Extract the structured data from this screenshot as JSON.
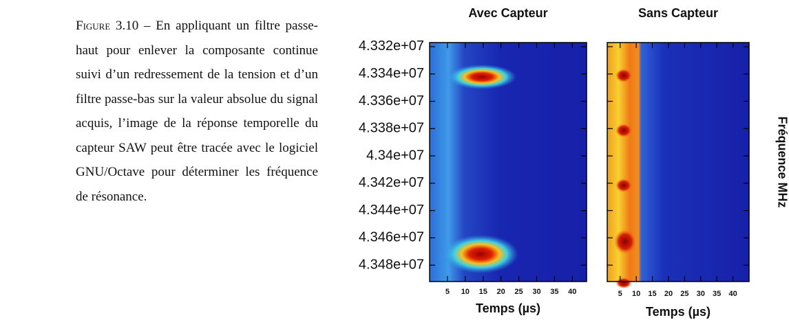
{
  "caption": {
    "label": "Figure 3.10",
    "separator": "–",
    "text": "En appliquant un filtre passe-haut pour enlever la composante continue suivi d’un redressement de la tension et d’un filtre passe-bas sur la valeur absolue du signal acquis, l’image de la réponse temporelle du capteur SAW peut être tracée avec le logiciel GNU/Octave pour déterminer les fréquence de résonance."
  },
  "figure": {
    "ylabel": "Fréquence MHz",
    "ylim": [
      43317000,
      43492000
    ],
    "yticks": [
      {
        "value": 43320000,
        "label": "4.332e+07"
      },
      {
        "value": 43340000,
        "label": "4.334e+07"
      },
      {
        "value": 43360000,
        "label": "4.336e+07"
      },
      {
        "value": 43380000,
        "label": "4.338e+07"
      },
      {
        "value": 43400000,
        "label": "4.34e+07"
      },
      {
        "value": 43420000,
        "label": "4.342e+07"
      },
      {
        "value": 43440000,
        "label": "4.344e+07"
      },
      {
        "value": 43460000,
        "label": "4.346e+07"
      },
      {
        "value": 43480000,
        "label": "4.348e+07"
      }
    ],
    "panels": [
      {
        "title": "Avec Capteur",
        "xlabel": "Temps (µs)",
        "xlim": [
          0,
          44
        ],
        "xticks": [
          5,
          10,
          15,
          20,
          25,
          30,
          35,
          40
        ]
      },
      {
        "title": "Sans Capteur",
        "xlabel": "Temps (µs)",
        "xlim": [
          1,
          45
        ],
        "xticks": [
          5,
          10,
          15,
          20,
          25,
          30,
          35,
          40
        ]
      }
    ]
  }
}
